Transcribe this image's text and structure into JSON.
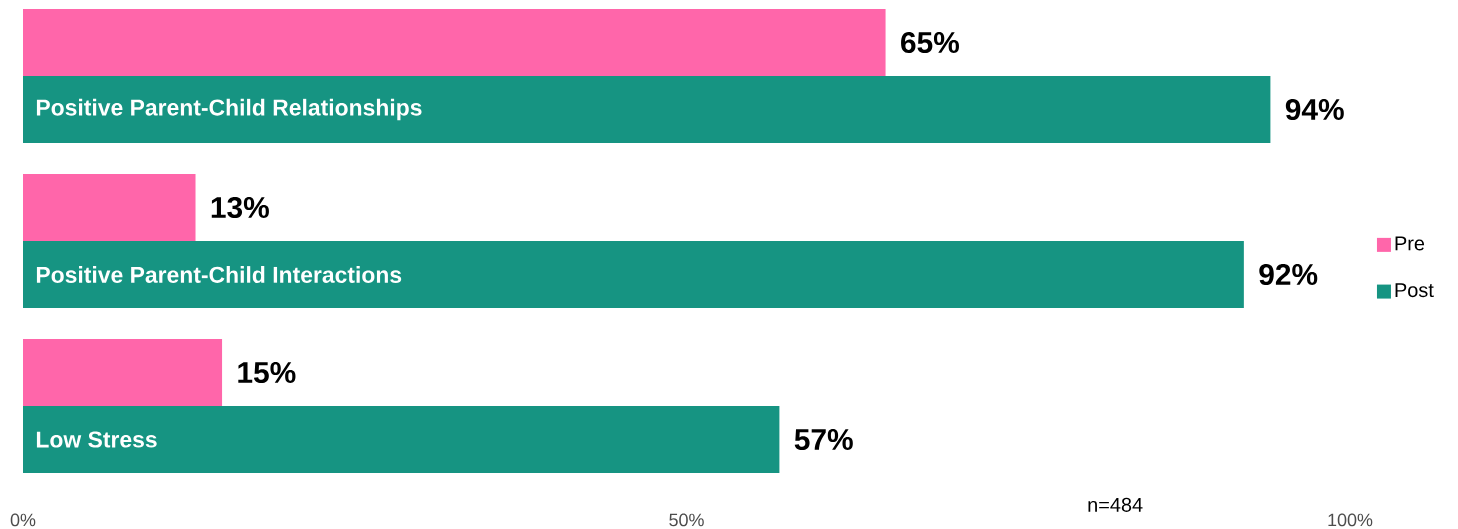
{
  "chart_data": {
    "type": "bar",
    "orientation": "horizontal",
    "categories": [
      "Positive Parent-Child Relationships",
      "Positive Parent-Child Interactions",
      "Low Stress"
    ],
    "series": [
      {
        "name": "Pre",
        "color": "#ff66aa",
        "values": [
          65,
          13,
          15
        ],
        "value_labels": [
          "65%",
          "13%",
          "15%"
        ]
      },
      {
        "name": "Post",
        "color": "#169482",
        "values": [
          94,
          92,
          57
        ],
        "value_labels": [
          "94%",
          "92%",
          "57%"
        ]
      }
    ],
    "xlim": [
      0,
      100
    ],
    "xticks": [
      {
        "value": 0,
        "label": "0%"
      },
      {
        "value": 50,
        "label": "50%"
      },
      {
        "value": 100,
        "label": "100%"
      }
    ],
    "legend": "right",
    "annotations": [
      "n=484"
    ]
  }
}
